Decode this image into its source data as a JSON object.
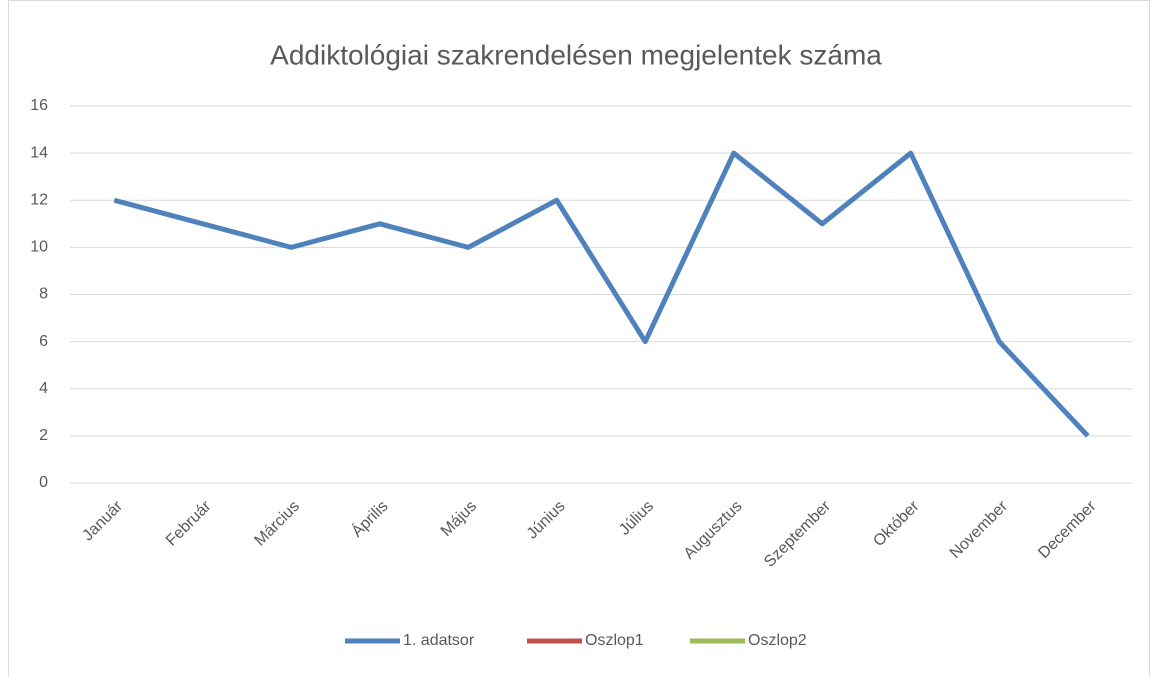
{
  "chart_data": {
    "type": "line",
    "title": "Addiktológiai szakrendelésen megjelentek száma",
    "categories": [
      "Január",
      "Február",
      "Március",
      "Április",
      "Május",
      "Június",
      "Július",
      "Augusztus",
      "Szeptember",
      "Október",
      "November",
      "December"
    ],
    "series": [
      {
        "name": "1. adatsor",
        "color": "#4f81bd",
        "values": [
          12,
          11,
          10,
          11,
          10,
          12,
          6,
          14,
          11,
          14,
          6,
          2
        ]
      },
      {
        "name": "Oszlop1",
        "color": "#c0504d",
        "values": [
          null,
          null,
          null,
          null,
          null,
          null,
          null,
          null,
          null,
          null,
          null,
          null
        ]
      },
      {
        "name": "Oszlop2",
        "color": "#9bbb59",
        "values": [
          null,
          null,
          null,
          null,
          null,
          null,
          null,
          null,
          null,
          null,
          null,
          null
        ]
      }
    ],
    "ylim": [
      0,
      16
    ],
    "yticks": [
      0,
      2,
      4,
      6,
      8,
      10,
      12,
      14,
      16
    ],
    "grid": true,
    "legend": "bottom"
  }
}
